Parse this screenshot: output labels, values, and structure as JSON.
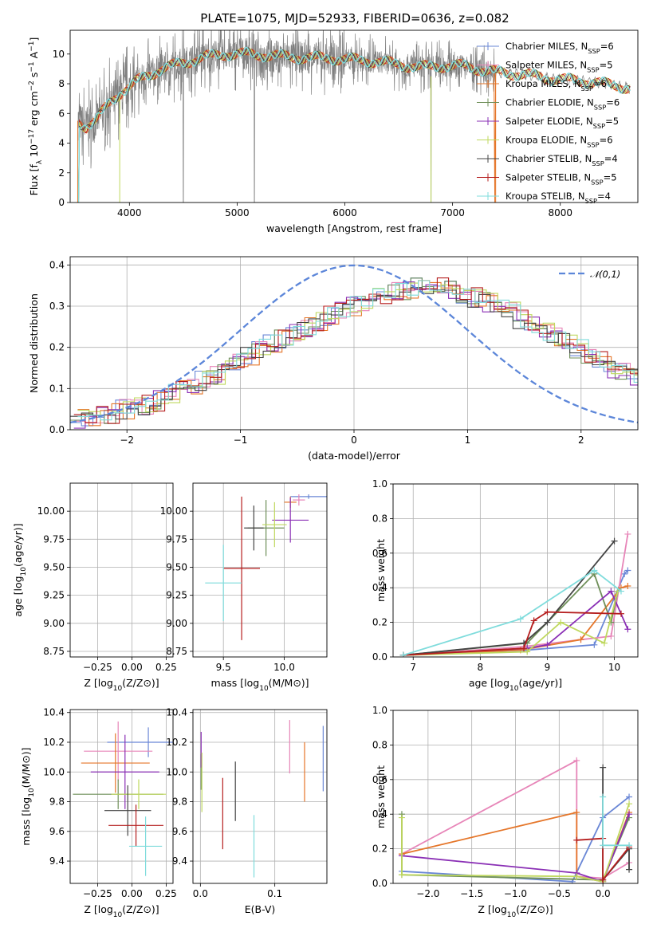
{
  "colors": {
    "chabrier_miles": "#6a87d6",
    "salpeter_miles": "#e785b8",
    "kroupa_miles": "#e5762a",
    "chabrier_elodie": "#6f8f59",
    "salpeter_elodie": "#8a2fb5",
    "kroupa_elodie": "#bfd85e",
    "chabrier_stelib": "#444444",
    "salpeter_stelib": "#b51e1e",
    "kroupa_stelib": "#7fdcdc",
    "data": "#808080",
    "normal": "#5c86d9"
  },
  "chart_data": [
    {
      "type": "line",
      "title": "PLATE=1075, MJD=52933, FIBERID=0636, z=0.082",
      "xlabel": "wavelength [Angstrom, rest frame]",
      "ylabel": "Flux [f_λ 10^-17 erg cm^-2 s^-1 A^-1]",
      "xlim": [
        3450,
        8720
      ],
      "ylim": [
        0,
        11.6
      ],
      "xticks": [
        4000,
        5000,
        6000,
        7000,
        8000
      ],
      "yticks": [
        0,
        2,
        4,
        6,
        8,
        10
      ],
      "series": [
        {
          "name": "Chabrier MILES, N_SSP=6",
          "color": "chabrier_miles"
        },
        {
          "name": "Salpeter MILES, N_SSP=5",
          "color": "salpeter_miles"
        },
        {
          "name": "Kroupa MILES, N_SSP=6",
          "color": "kroupa_miles"
        },
        {
          "name": "Chabrier ELODIE, N_SSP=6",
          "color": "chabrier_elodie"
        },
        {
          "name": "Salpeter ELODIE, N_SSP=5",
          "color": "salpeter_elodie"
        },
        {
          "name": "Kroupa ELODIE, N_SSP=6",
          "color": "kroupa_elodie"
        },
        {
          "name": "Chabrier STELIB, N_SSP=4",
          "color": "chabrier_stelib"
        },
        {
          "name": "Salpeter STELIB, N_SSP=5",
          "color": "salpeter_stelib"
        },
        {
          "name": "Kroupa STELIB, N_SSP=4",
          "color": "kroupa_stelib"
        }
      ],
      "legend": "right",
      "continuum": {
        "x": [
          3520,
          3560,
          3600,
          3700,
          3800,
          3900,
          4000,
          4100,
          4300,
          4500,
          4700,
          4900,
          5100,
          5300,
          5500,
          5700,
          5900,
          6100,
          6300,
          6500,
          6700,
          6900,
          7100,
          7300,
          7500,
          7700,
          7900,
          8100,
          8300,
          8500,
          8650
        ],
        "y": [
          5.5,
          5.3,
          5.1,
          5.6,
          6.6,
          7.3,
          7.8,
          8.3,
          9.0,
          9.4,
          9.8,
          10.0,
          10.0,
          9.9,
          9.8,
          9.75,
          9.7,
          9.6,
          9.5,
          9.3,
          9.1,
          9.2,
          9.2,
          8.9,
          8.7,
          8.6,
          8.35,
          8.25,
          8.1,
          7.9,
          7.7
        ]
      }
    },
    {
      "type": "line",
      "xlabel": "(data-model)/error",
      "ylabel": "Normed distribution",
      "xlim": [
        -2.5,
        2.5
      ],
      "ylim": [
        0,
        0.42
      ],
      "xticks": [
        -2,
        -1,
        0,
        1,
        2
      ],
      "yticks": [
        0.0,
        0.1,
        0.2,
        0.3,
        0.4
      ],
      "legend": "top-right",
      "normal_label": "𝒩(0,1)",
      "hist_bins": {
        "start": -2.5,
        "width": 0.1
      },
      "hist_envelope": [
        0.025,
        0.03,
        0.035,
        0.04,
        0.05,
        0.055,
        0.06,
        0.07,
        0.085,
        0.095,
        0.11,
        0.12,
        0.135,
        0.15,
        0.165,
        0.18,
        0.195,
        0.21,
        0.22,
        0.235,
        0.25,
        0.26,
        0.275,
        0.285,
        0.3,
        0.31,
        0.32,
        0.33,
        0.335,
        0.34,
        0.345,
        0.35,
        0.345,
        0.34,
        0.33,
        0.32,
        0.31,
        0.3,
        0.285,
        0.27,
        0.255,
        0.24,
        0.225,
        0.21,
        0.195,
        0.18,
        0.165,
        0.15,
        0.14,
        0.125
      ]
    },
    {
      "type": "scatter",
      "xlabel": "Z [log10(Z/Z⊙)]",
      "ylabel": "age  [log10(age/yr)]",
      "xlim": [
        -0.45,
        0.3
      ],
      "ylim": [
        8.7,
        10.25
      ],
      "xticks": [
        -0.25,
        0.0,
        0.25
      ],
      "yticks": [
        8.75,
        9.0,
        9.25,
        9.5,
        9.75,
        10.0
      ],
      "points": [
        {
          "c": "chabrier_miles",
          "x": 0.1,
          "xerr": 0.28,
          "y": 10.13,
          "yerr": 0.01
        },
        {
          "c": "salpeter_miles",
          "x": -0.1,
          "xerr": 0.25,
          "y": 10.11,
          "yerr": 0.03
        },
        {
          "c": "kroupa_miles",
          "x": -0.12,
          "xerr": 0.25,
          "y": 10.09,
          "yerr": 0.02
        },
        {
          "c": "chabrier_elodie",
          "x": -0.1,
          "xerr": 0.32,
          "y": 9.85,
          "yerr": 0.01
        },
        {
          "c": "salpeter_elodie",
          "x": -0.05,
          "xerr": 0.25,
          "y": 9.92,
          "yerr": 0.2
        },
        {
          "c": "kroupa_elodie",
          "x": 0.02,
          "xerr": 0.2,
          "y": 9.85,
          "yerr": 0.3
        },
        {
          "c": "chabrier_stelib",
          "x": 0.05,
          "xerr": 0.1,
          "y": 9.85,
          "yerr": 0.25
        },
        {
          "c": "salpeter_stelib",
          "x": 0.05,
          "xerr": 0.23,
          "y": 9.49,
          "yerr": 0.64
        },
        {
          "c": "kroupa_stelib",
          "x": 0.1,
          "xerr": 0.12,
          "y": 9.36,
          "yerr": 0.02
        }
      ]
    },
    {
      "type": "scatter",
      "xlabel": "mass [log10(M/M⊙)]",
      "ylabel": "",
      "xlim": [
        9.25,
        10.35
      ],
      "ylim": [
        8.7,
        10.25
      ],
      "xticks": [
        9.5,
        10.0
      ],
      "yticks": [
        8.75,
        9.0,
        9.25,
        9.5,
        9.75,
        10.0
      ],
      "points": [
        {
          "c": "chabrier_miles",
          "x": 10.2,
          "xerr": 0.15,
          "y": 10.13,
          "yerr": 0.02
        },
        {
          "c": "salpeter_miles",
          "x": 10.12,
          "xerr": 0.05,
          "y": 10.1,
          "yerr": 0.05
        },
        {
          "c": "kroupa_miles",
          "x": 10.05,
          "xerr": 0.05,
          "y": 10.08,
          "yerr": 0.05
        },
        {
          "c": "chabrier_elodie",
          "x": 9.85,
          "xerr": 0.15,
          "y": 9.85,
          "yerr": 0.25
        },
        {
          "c": "salpeter_elodie",
          "x": 10.05,
          "xerr": 0.15,
          "y": 9.92,
          "yerr": 0.2
        },
        {
          "c": "kroupa_elodie",
          "x": 9.92,
          "xerr": 0.1,
          "y": 9.88,
          "yerr": 0.2
        },
        {
          "c": "chabrier_stelib",
          "x": 9.75,
          "xerr": 0.08,
          "y": 9.85,
          "yerr": 0.2
        },
        {
          "c": "salpeter_stelib",
          "x": 9.65,
          "xerr": 0.15,
          "y": 9.49,
          "yerr": 0.64
        },
        {
          "c": "kroupa_stelib",
          "x": 9.5,
          "xerr": 0.15,
          "y": 9.36,
          "yerr": 0.34
        }
      ]
    },
    {
      "type": "line",
      "xlabel": "age  [log10(age/yr)]",
      "ylabel": "mass weight",
      "xlim": [
        6.7,
        10.35
      ],
      "ylim": [
        0,
        1.0
      ],
      "xticks": [
        7,
        8,
        9,
        10
      ],
      "yticks": [
        0.0,
        0.2,
        0.4,
        0.6,
        0.8,
        1.0
      ],
      "series": [
        {
          "c": "chabrier_miles",
          "x": [
            6.85,
            8.7,
            9.7,
            10.15,
            10.2
          ],
          "y": [
            0.01,
            0.04,
            0.07,
            0.48,
            0.5
          ]
        },
        {
          "c": "salpeter_miles",
          "x": [
            6.85,
            8.65,
            9.5,
            9.95,
            10.2
          ],
          "y": [
            0.01,
            0.06,
            0.1,
            0.12,
            0.71
          ]
        },
        {
          "c": "kroupa_miles",
          "x": [
            6.85,
            8.6,
            9.5,
            10.1,
            10.2
          ],
          "y": [
            0.01,
            0.04,
            0.1,
            0.4,
            0.41
          ]
        },
        {
          "c": "chabrier_elodie",
          "x": [
            6.85,
            8.7,
            9.7,
            9.95,
            10.05
          ],
          "y": [
            0.01,
            0.08,
            0.48,
            0.2,
            0.38
          ]
        },
        {
          "c": "salpeter_elodie",
          "x": [
            6.85,
            8.7,
            9.0,
            9.95,
            10.2
          ],
          "y": [
            0.01,
            0.05,
            0.07,
            0.38,
            0.16
          ]
        },
        {
          "c": "kroupa_elodie",
          "x": [
            6.85,
            8.7,
            9.2,
            9.85,
            10.05
          ],
          "y": [
            0.01,
            0.03,
            0.2,
            0.08,
            0.38
          ]
        },
        {
          "c": "chabrier_stelib",
          "x": [
            6.85,
            8.65,
            9.0,
            10.0
          ],
          "y": [
            0.01,
            0.08,
            0.2,
            0.67
          ]
        },
        {
          "c": "salpeter_stelib",
          "x": [
            6.85,
            8.65,
            8.8,
            9.0,
            10.1
          ],
          "y": [
            0.01,
            0.05,
            0.21,
            0.26,
            0.25
          ]
        },
        {
          "c": "kroupa_stelib",
          "x": [
            6.85,
            8.6,
            9.7,
            10.1
          ],
          "y": [
            0.01,
            0.22,
            0.5,
            0.38
          ]
        }
      ]
    },
    {
      "type": "scatter",
      "xlabel": "Z [log10(Z/Z⊙)]",
      "ylabel": "mass [log10(M/M⊙)]",
      "xlim": [
        -0.45,
        0.3
      ],
      "ylim": [
        9.25,
        10.42
      ],
      "xticks": [
        -0.25,
        0.0,
        0.25
      ],
      "yticks": [
        9.4,
        9.6,
        9.8,
        10.0,
        10.2,
        10.4
      ],
      "points": [
        {
          "c": "chabrier_miles",
          "x": 0.12,
          "xerr": 0.3,
          "y": 10.2,
          "yerr": 0.1
        },
        {
          "c": "salpeter_miles",
          "x": -0.1,
          "xerr": 0.25,
          "y": 10.14,
          "yerr": 0.2
        },
        {
          "c": "kroupa_miles",
          "x": -0.12,
          "xerr": 0.25,
          "y": 10.06,
          "yerr": 0.2
        },
        {
          "c": "chabrier_elodie",
          "x": -0.1,
          "xerr": 0.33,
          "y": 9.85,
          "yerr": 0.1
        },
        {
          "c": "salpeter_elodie",
          "x": -0.05,
          "xerr": 0.25,
          "y": 10.0,
          "yerr": 0.25
        },
        {
          "c": "kroupa_elodie",
          "x": 0.05,
          "xerr": 0.2,
          "y": 9.85,
          "yerr": 0.1
        },
        {
          "c": "chabrier_stelib",
          "x": -0.03,
          "xerr": 0.17,
          "y": 9.74,
          "yerr": 0.17
        },
        {
          "c": "salpeter_stelib",
          "x": 0.03,
          "xerr": 0.2,
          "y": 9.64,
          "yerr": 0.14
        },
        {
          "c": "kroupa_stelib",
          "x": 0.1,
          "xerr": 0.12,
          "y": 9.5,
          "yerr": 0.2
        }
      ]
    },
    {
      "type": "scatter",
      "xlabel": "E(B-V)",
      "ylabel": "",
      "xlim": [
        -0.01,
        0.17
      ],
      "ylim": [
        9.25,
        10.42
      ],
      "xticks": [
        0.0,
        0.1
      ],
      "yticks": [
        9.4,
        9.6,
        9.8,
        10.0,
        10.2,
        10.4
      ],
      "points": [
        {
          "c": "chabrier_miles",
          "x": 0.165,
          "xerr": 0,
          "y": 10.09,
          "yerr": 0.22
        },
        {
          "c": "salpeter_miles",
          "x": 0.12,
          "xerr": 0,
          "y": 10.17,
          "yerr": 0.18
        },
        {
          "c": "kroupa_miles",
          "x": 0.14,
          "xerr": 0,
          "y": 10.0,
          "yerr": 0.2
        },
        {
          "c": "chabrier_elodie",
          "x": 0.001,
          "xerr": 0,
          "y": 10.0,
          "yerr": 0.12
        },
        {
          "c": "salpeter_elodie",
          "x": 0.001,
          "xerr": 0,
          "y": 10.15,
          "yerr": 0.12
        },
        {
          "c": "kroupa_elodie",
          "x": 0.002,
          "xerr": 0,
          "y": 9.93,
          "yerr": 0.2
        },
        {
          "c": "chabrier_stelib",
          "x": 0.047,
          "xerr": 0,
          "y": 9.87,
          "yerr": 0.2
        },
        {
          "c": "salpeter_stelib",
          "x": 0.03,
          "xerr": 0,
          "y": 9.72,
          "yerr": 0.24
        },
        {
          "c": "kroupa_stelib",
          "x": 0.072,
          "xerr": 0,
          "y": 9.5,
          "yerr": 0.21
        }
      ]
    },
    {
      "type": "line",
      "xlabel": "Z [log10(Z/Z⊙)]",
      "ylabel": "mass weight",
      "xlim": [
        -2.4,
        0.4
      ],
      "ylim": [
        0,
        1.0
      ],
      "xticks": [
        -2.0,
        -1.5,
        -1.0,
        -0.5,
        0.0
      ],
      "yticks": [
        0.0,
        0.2,
        0.4,
        0.6,
        0.8,
        1.0
      ],
      "series": [
        {
          "c": "chabrier_miles",
          "x": [
            -2.3,
            -0.35,
            0.0,
            0.3
          ],
          "y": [
            0.07,
            0.01,
            0.38,
            0.5
          ]
        },
        {
          "c": "salpeter_miles",
          "x": [
            -2.3,
            -0.3,
            -0.3,
            0.0,
            0.3
          ],
          "y": [
            0.17,
            0.71,
            0.04,
            0.03,
            0.12
          ]
        },
        {
          "c": "kroupa_miles",
          "x": [
            -2.3,
            -0.3,
            -0.3,
            0.0,
            0.3
          ],
          "y": [
            0.17,
            0.41,
            0.04,
            0.01,
            0.41
          ]
        },
        {
          "c": "chabrier_elodie",
          "x": [
            -2.3,
            -2.3,
            0.0,
            0.3
          ],
          "y": [
            0.4,
            0.05,
            0.02,
            0.38
          ]
        },
        {
          "c": "salpeter_elodie",
          "x": [
            -2.3,
            -0.3,
            0.0,
            0.3
          ],
          "y": [
            0.16,
            0.06,
            0.01,
            0.4
          ]
        },
        {
          "c": "kroupa_elodie",
          "x": [
            -2.3,
            -2.3,
            -0.3,
            0.0,
            0.3
          ],
          "y": [
            0.38,
            0.05,
            0.04,
            0.01,
            0.46
          ]
        },
        {
          "c": "chabrier_stelib",
          "x": [
            0.0,
            0.0,
            0.3,
            0.3
          ],
          "y": [
            0.67,
            0.02,
            0.2,
            0.08
          ]
        },
        {
          "c": "salpeter_stelib",
          "x": [
            -0.3,
            0.0,
            0.0,
            0.3
          ],
          "y": [
            0.25,
            0.26,
            0.02,
            0.21
          ]
        },
        {
          "c": "kroupa_stelib",
          "x": [
            0.0,
            0.0,
            0.3
          ],
          "y": [
            0.5,
            0.22,
            0.22
          ]
        }
      ]
    }
  ]
}
